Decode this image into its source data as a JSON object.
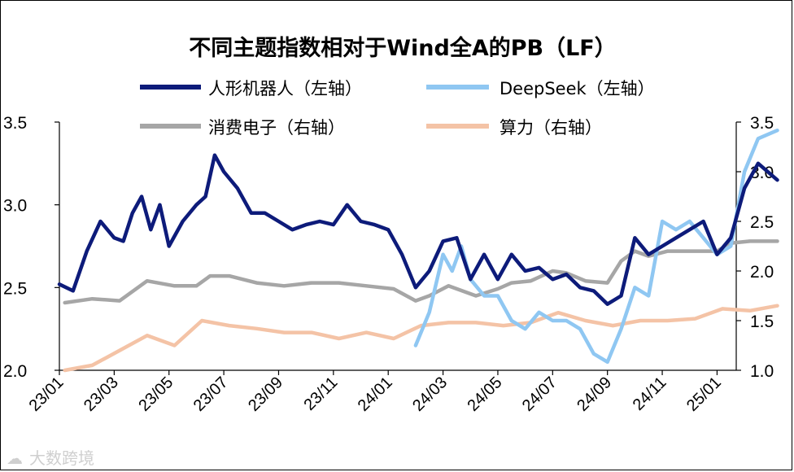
{
  "chart_data": {
    "type": "line",
    "title": "不同主题指数相对于Wind全A的PB（LF）",
    "watermark": "大数跨境",
    "x_ticks": [
      "23/01",
      "23/03",
      "23/05",
      "23/07",
      "23/09",
      "23/11",
      "24/01",
      "24/03",
      "24/05",
      "24/07",
      "24/09",
      "24/11",
      "25/01"
    ],
    "left_axis": {
      "ylim": [
        2.0,
        3.5
      ],
      "ticks": [
        "2.0",
        "2.5",
        "3.0",
        "3.5"
      ]
    },
    "right_axis": {
      "ylim": [
        1.0,
        3.5
      ],
      "ticks": [
        "1.0",
        "1.5",
        "2.0",
        "2.5",
        "3.0",
        "3.5"
      ]
    },
    "series": [
      {
        "name": "人形机器人（左轴）",
        "axis": "left",
        "color": "#0d1b7a",
        "line_width": 4.5,
        "points": [
          [
            "23/01",
            2.52
          ],
          [
            "23/01",
            2.48
          ],
          [
            "23/02",
            2.72
          ],
          [
            "23/02",
            2.9
          ],
          [
            "23/03",
            2.8
          ],
          [
            "23/03",
            2.78
          ],
          [
            "23/03",
            2.95
          ],
          [
            "23/04",
            3.05
          ],
          [
            "23/04",
            2.85
          ],
          [
            "23/04",
            3.0
          ],
          [
            "23/05",
            2.75
          ],
          [
            "23/05",
            2.9
          ],
          [
            "23/06",
            3.0
          ],
          [
            "23/06",
            3.05
          ],
          [
            "23/06",
            3.3
          ],
          [
            "23/07",
            3.2
          ],
          [
            "23/07",
            3.1
          ],
          [
            "23/08",
            2.95
          ],
          [
            "23/08",
            2.95
          ],
          [
            "23/09",
            2.9
          ],
          [
            "23/09",
            2.85
          ],
          [
            "23/10",
            2.88
          ],
          [
            "23/10",
            2.9
          ],
          [
            "23/11",
            2.88
          ],
          [
            "23/11",
            3.0
          ],
          [
            "23/12",
            2.9
          ],
          [
            "23/12",
            2.88
          ],
          [
            "24/01",
            2.85
          ],
          [
            "24/01",
            2.7
          ],
          [
            "24/02",
            2.5
          ],
          [
            "24/02",
            2.6
          ],
          [
            "24/03",
            2.78
          ],
          [
            "24/03",
            2.8
          ],
          [
            "24/04",
            2.55
          ],
          [
            "24/04",
            2.7
          ],
          [
            "24/05",
            2.55
          ],
          [
            "24/05",
            2.7
          ],
          [
            "24/06",
            2.6
          ],
          [
            "24/06",
            2.62
          ],
          [
            "24/07",
            2.55
          ],
          [
            "24/07",
            2.58
          ],
          [
            "24/08",
            2.5
          ],
          [
            "24/08",
            2.48
          ],
          [
            "24/09",
            2.4
          ],
          [
            "24/09",
            2.45
          ],
          [
            "24/10",
            2.8
          ],
          [
            "24/10",
            2.7
          ],
          [
            "24/11",
            2.75
          ],
          [
            "24/11",
            2.8
          ],
          [
            "24/12",
            2.85
          ],
          [
            "24/12",
            2.9
          ],
          [
            "25/01",
            2.7
          ],
          [
            "25/01",
            2.8
          ],
          [
            "25/02",
            3.1
          ],
          [
            "25/02",
            3.25
          ],
          [
            "25/03",
            3.15
          ]
        ]
      },
      {
        "name": "DeepSeek（左轴）",
        "axis": "left",
        "color": "#8fc7f2",
        "line_width": 4.5,
        "points": [
          [
            "24/02",
            2.15
          ],
          [
            "24/02",
            2.35
          ],
          [
            "24/03",
            2.7
          ],
          [
            "24/03",
            2.6
          ],
          [
            "24/03",
            2.75
          ],
          [
            "24/04",
            2.55
          ],
          [
            "24/04",
            2.45
          ],
          [
            "24/05",
            2.45
          ],
          [
            "24/05",
            2.3
          ],
          [
            "24/06",
            2.25
          ],
          [
            "24/06",
            2.35
          ],
          [
            "24/07",
            2.3
          ],
          [
            "24/07",
            2.3
          ],
          [
            "24/08",
            2.25
          ],
          [
            "24/08",
            2.1
          ],
          [
            "24/09",
            2.05
          ],
          [
            "24/09",
            2.25
          ],
          [
            "24/10",
            2.5
          ],
          [
            "24/10",
            2.45
          ],
          [
            "24/11",
            2.9
          ],
          [
            "24/11",
            2.85
          ],
          [
            "24/12",
            2.9
          ],
          [
            "24/12",
            2.8
          ],
          [
            "25/01",
            2.7
          ],
          [
            "25/01",
            2.75
          ],
          [
            "25/02",
            3.2
          ],
          [
            "25/02",
            3.4
          ],
          [
            "25/03",
            3.45
          ]
        ]
      },
      {
        "name": "消费电子（右轴）",
        "axis": "right",
        "color": "#a6a6a6",
        "line_width": 4.5,
        "points": [
          [
            "23/01",
            1.68
          ],
          [
            "23/02",
            1.72
          ],
          [
            "23/03",
            1.7
          ],
          [
            "23/04",
            1.9
          ],
          [
            "23/05",
            1.85
          ],
          [
            "23/06",
            1.85
          ],
          [
            "23/06",
            1.95
          ],
          [
            "23/07",
            1.95
          ],
          [
            "23/08",
            1.88
          ],
          [
            "23/09",
            1.85
          ],
          [
            "23/10",
            1.88
          ],
          [
            "23/11",
            1.88
          ],
          [
            "23/12",
            1.85
          ],
          [
            "24/01",
            1.82
          ],
          [
            "24/02",
            1.7
          ],
          [
            "24/02",
            1.75
          ],
          [
            "24/03",
            1.85
          ],
          [
            "24/04",
            1.75
          ],
          [
            "24/05",
            1.82
          ],
          [
            "24/05",
            1.88
          ],
          [
            "24/06",
            1.9
          ],
          [
            "24/07",
            2.0
          ],
          [
            "24/07",
            1.98
          ],
          [
            "24/08",
            1.9
          ],
          [
            "24/09",
            1.88
          ],
          [
            "24/09",
            2.1
          ],
          [
            "24/10",
            2.2
          ],
          [
            "24/10",
            2.15
          ],
          [
            "24/11",
            2.2
          ],
          [
            "24/12",
            2.2
          ],
          [
            "25/01",
            2.2
          ],
          [
            "25/01",
            2.28
          ],
          [
            "25/02",
            2.3
          ],
          [
            "25/03",
            2.3
          ]
        ]
      },
      {
        "name": "算力（右轴）",
        "axis": "right",
        "color": "#f4c3a6",
        "line_width": 4.5,
        "points": [
          [
            "23/01",
            1.0
          ],
          [
            "23/02",
            1.05
          ],
          [
            "23/03",
            1.2
          ],
          [
            "23/04",
            1.35
          ],
          [
            "23/05",
            1.25
          ],
          [
            "23/06",
            1.5
          ],
          [
            "23/07",
            1.45
          ],
          [
            "23/08",
            1.42
          ],
          [
            "23/09",
            1.38
          ],
          [
            "23/10",
            1.38
          ],
          [
            "23/11",
            1.32
          ],
          [
            "23/12",
            1.38
          ],
          [
            "24/01",
            1.32
          ],
          [
            "24/02",
            1.45
          ],
          [
            "24/03",
            1.48
          ],
          [
            "24/04",
            1.48
          ],
          [
            "24/05",
            1.45
          ],
          [
            "24/06",
            1.48
          ],
          [
            "24/07",
            1.58
          ],
          [
            "24/08",
            1.5
          ],
          [
            "24/09",
            1.45
          ],
          [
            "24/10",
            1.5
          ],
          [
            "24/11",
            1.5
          ],
          [
            "24/12",
            1.52
          ],
          [
            "25/01",
            1.62
          ],
          [
            "25/02",
            1.6
          ],
          [
            "25/03",
            1.65
          ]
        ]
      }
    ]
  }
}
